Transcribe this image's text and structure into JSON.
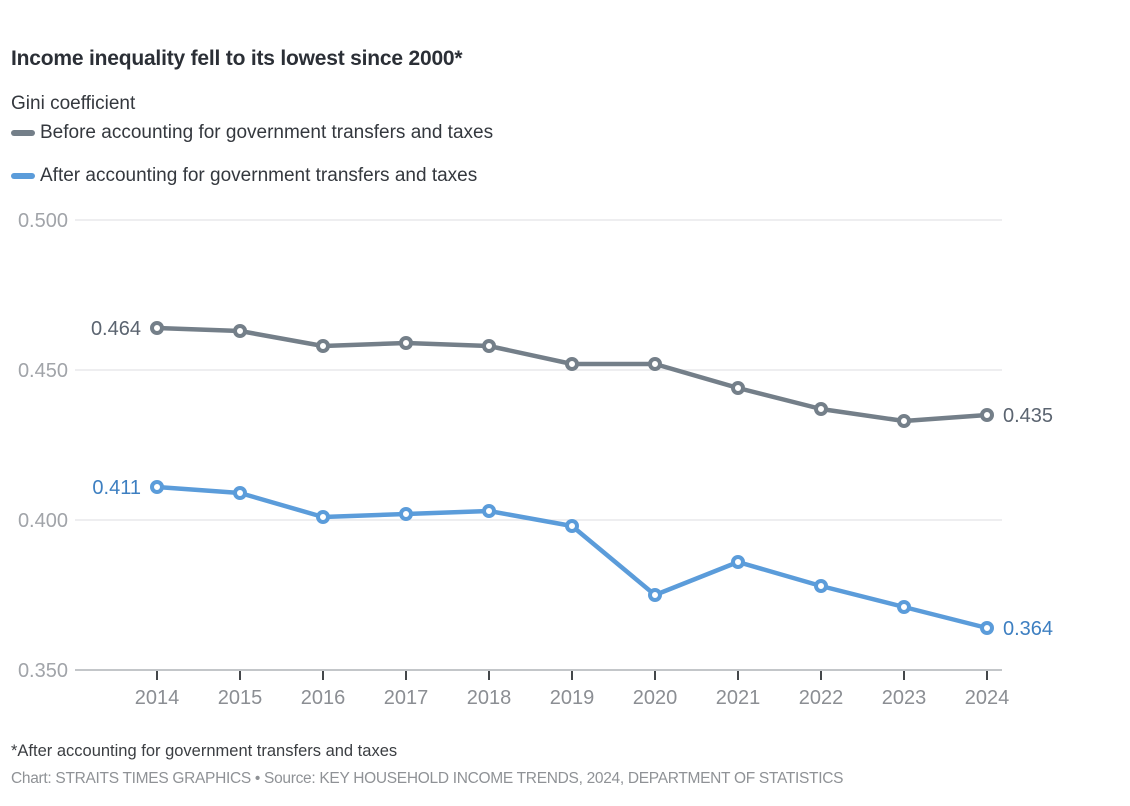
{
  "header": {
    "title": "Income inequality fell to its lowest since 2000*",
    "subtitle": "Gini coefficient"
  },
  "legend": {
    "items": [
      {
        "id": "before",
        "label": "Before accounting for government transfers and taxes",
        "color": "#747f89"
      },
      {
        "id": "after",
        "label": "After accounting for government transfers and taxes",
        "color": "#5b9cda"
      }
    ]
  },
  "chart_data": {
    "type": "line",
    "title": "Income inequality fell to its lowest since 2000*",
    "ylabel": "Gini coefficient",
    "x": [
      "2014",
      "2015",
      "2016",
      "2017",
      "2018",
      "2019",
      "2020",
      "2021",
      "2022",
      "2023",
      "2024"
    ],
    "series": [
      {
        "id": "before",
        "name": "Before accounting for government transfers and taxes",
        "color": "#747f89",
        "label_color": "#5b6470",
        "values": [
          0.464,
          0.463,
          0.458,
          0.459,
          0.458,
          0.452,
          0.452,
          0.444,
          0.437,
          0.433,
          0.435
        ]
      },
      {
        "id": "after",
        "name": "After accounting for government transfers and taxes",
        "color": "#5b9cda",
        "label_color": "#3d7fc1",
        "values": [
          0.411,
          0.409,
          0.401,
          0.402,
          0.403,
          0.398,
          0.375,
          0.386,
          0.378,
          0.371,
          0.364
        ]
      }
    ],
    "ylim": [
      0.35,
      0.5
    ],
    "ytick_labels": [
      "0.500",
      "0.450",
      "0.400",
      "0.350"
    ],
    "grid": true,
    "legend_position": "top-left",
    "point_labels": [
      {
        "series": 0,
        "index": 0,
        "text": "0.464",
        "position": "left"
      },
      {
        "series": 0,
        "index": 10,
        "text": "0.435",
        "position": "right"
      },
      {
        "series": 1,
        "index": 0,
        "text": "0.411",
        "position": "left"
      },
      {
        "series": 1,
        "index": 10,
        "text": "0.364",
        "position": "right"
      }
    ]
  },
  "footer": {
    "footnote": "*After accounting for government transfers and taxes",
    "credit": "Chart: STRAITS TIMES GRAPHICS • Source: KEY HOUSEHOLD INCOME TRENDS, 2024, DEPARTMENT OF STATISTICS"
  },
  "colors": {
    "grid_line": "#e4e4e6",
    "axis_line": "#c3c6c9",
    "tick_mark": "#44474a",
    "y_tick_label": "#a1a4a9",
    "x_tick_label": "#8b8e93",
    "marker_fill": "#ffffff"
  }
}
